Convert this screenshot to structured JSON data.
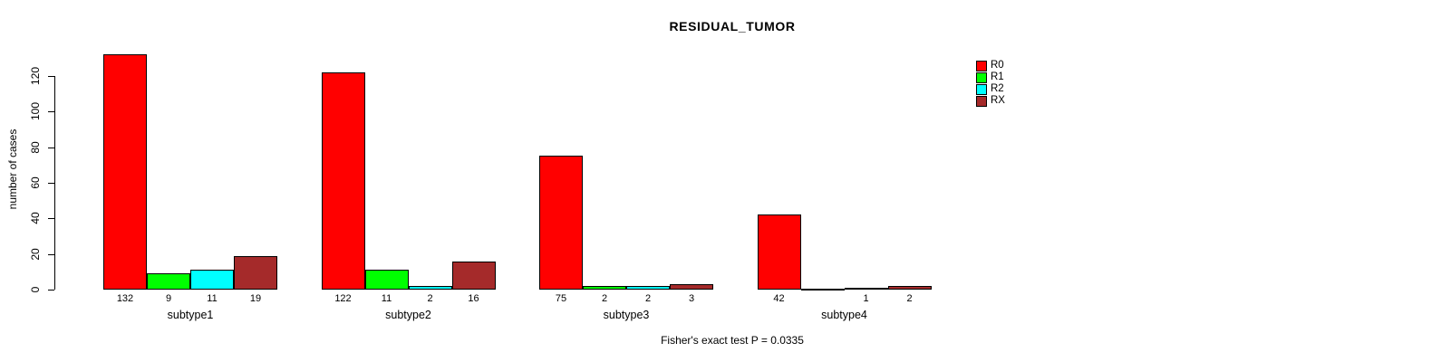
{
  "chart_data": {
    "type": "bar",
    "title": "RESIDUAL_TUMOR",
    "ylabel": "number of cases",
    "xlabel": "",
    "annotation": "Fisher's exact test P = 0.0335",
    "categories": [
      "subtype1",
      "subtype2",
      "subtype3",
      "subtype4"
    ],
    "series": [
      {
        "name": "R0",
        "color": "#FF0000",
        "values": [
          132,
          122,
          75,
          42
        ]
      },
      {
        "name": "R1",
        "color": "#00FF00",
        "values": [
          9,
          11,
          2,
          0
        ]
      },
      {
        "name": "R2",
        "color": "#00FFFF",
        "values": [
          11,
          2,
          2,
          1
        ]
      },
      {
        "name": "RX",
        "color": "#A52A2A",
        "values": [
          19,
          16,
          3,
          2
        ]
      }
    ],
    "ylim": [
      0,
      120
    ],
    "yticks": [
      0,
      20,
      40,
      60,
      80,
      100,
      120
    ],
    "grid": false,
    "legend_position": "top-right",
    "bar_value_labels": true,
    "zero_value_label_hidden": true
  }
}
